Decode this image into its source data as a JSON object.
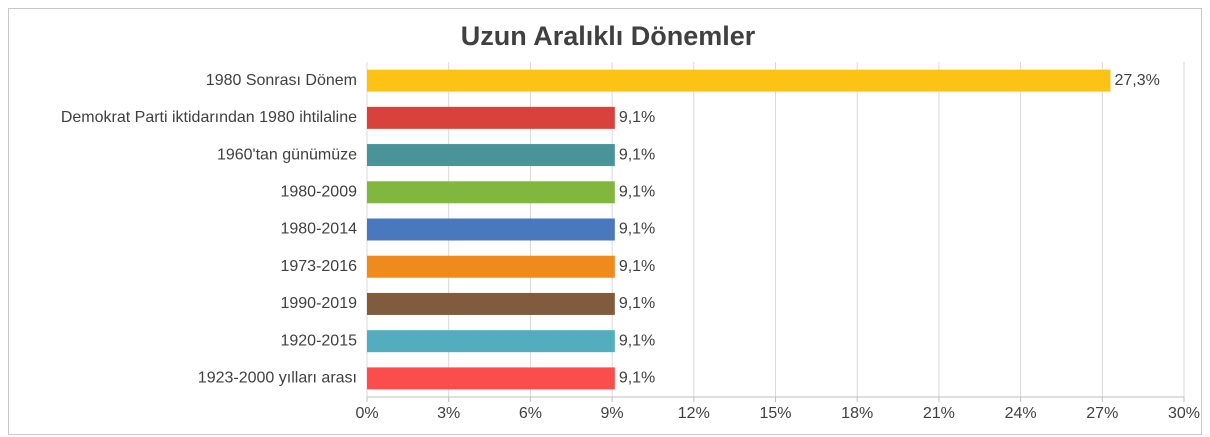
{
  "chart_data": {
    "type": "hbar",
    "title": "Uzun Aralıklı Dönemler",
    "categories": [
      "1980 Sonrası Dönem",
      "Demokrat Parti iktidarından 1980 ihtilaline",
      "1960'tan günümüze",
      "1980-2009",
      "1980-2014",
      "1973-2016",
      "1990-2019",
      "1920-2015",
      "1923-2000 yılları arası"
    ],
    "values": [
      27.3,
      9.1,
      9.1,
      9.1,
      9.1,
      9.1,
      9.1,
      9.1,
      9.1
    ],
    "value_labels": [
      "27,3%",
      "9,1%",
      "9,1%",
      "9,1%",
      "9,1%",
      "9,1%",
      "9,1%",
      "9,1%",
      "9,1%"
    ],
    "colors": [
      "#fdc314",
      "#d9413d",
      "#4a9399",
      "#82b73f",
      "#4a78be",
      "#ef8a1c",
      "#805b3d",
      "#52aebe",
      "#fb4d4c"
    ],
    "xlim": [
      0,
      30
    ],
    "xticks": [
      {
        "value": 0,
        "label": "0%"
      },
      {
        "value": 3,
        "label": "3%"
      },
      {
        "value": 6,
        "label": "6%"
      },
      {
        "value": 9,
        "label": "9%"
      },
      {
        "value": 12,
        "label": "12%"
      },
      {
        "value": 15,
        "label": "15%"
      },
      {
        "value": 18,
        "label": "18%"
      },
      {
        "value": 21,
        "label": "21%"
      },
      {
        "value": 24,
        "label": "24%"
      },
      {
        "value": 27,
        "label": "27%"
      },
      {
        "value": 30,
        "label": "30%"
      }
    ],
    "grid": true
  }
}
